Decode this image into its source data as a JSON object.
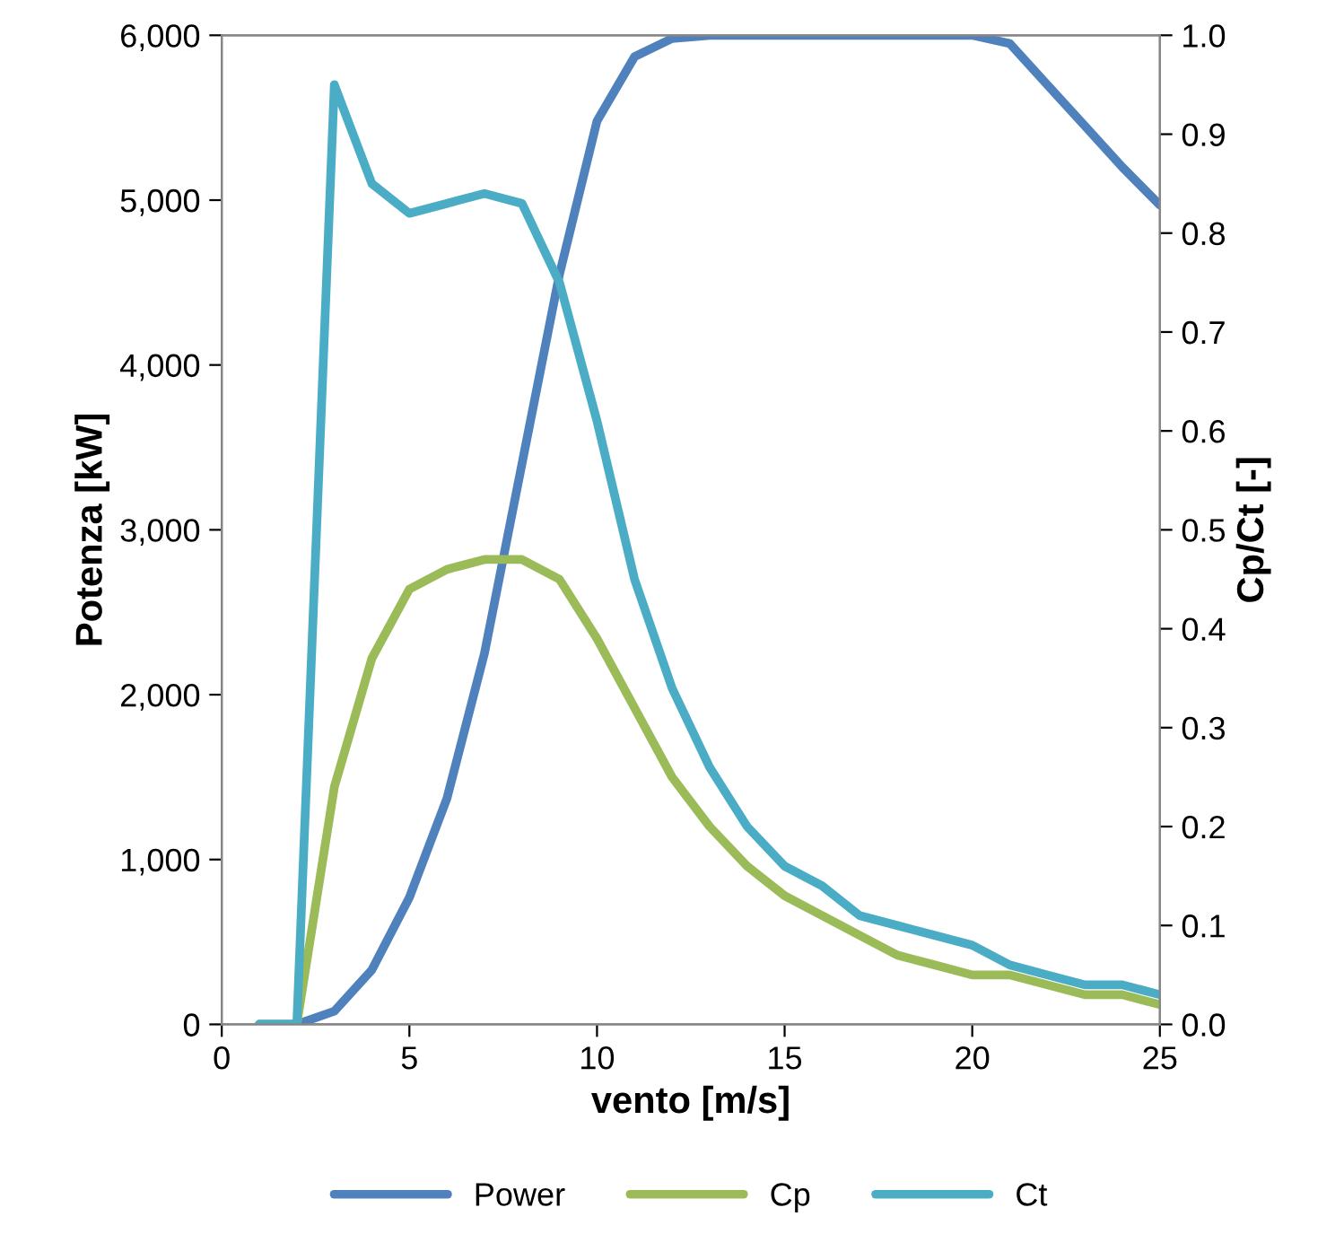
{
  "chart_data": {
    "type": "line",
    "xlabel": "vento [m/s]",
    "ylabel": "Potenza [kW]",
    "y2label": "Cp/Ct [-]",
    "x": [
      1,
      2,
      3,
      4,
      5,
      6,
      7,
      8,
      9,
      10,
      11,
      12,
      13,
      14,
      15,
      16,
      17,
      18,
      19,
      20,
      21,
      22,
      23,
      24,
      25
    ],
    "series": [
      {
        "name": "Power",
        "color": "#4f81bd",
        "values": [
          0,
          0,
          80,
          330,
          770,
          1370,
          2250,
          3400,
          4550,
          5480,
          5870,
          5980,
          6000,
          6000,
          6000,
          6000,
          6000,
          6000,
          6000,
          6000,
          5950,
          5700,
          5450,
          5200,
          4970
        ]
      },
      {
        "name": "Cp",
        "color": "#9bbb59",
        "axis": "y2",
        "values": [
          0,
          0,
          0.24,
          0.37,
          0.44,
          0.46,
          0.47,
          0.47,
          0.45,
          0.39,
          0.32,
          0.25,
          0.2,
          0.16,
          0.13,
          0.11,
          0.09,
          0.07,
          0.06,
          0.05,
          0.05,
          0.04,
          0.03,
          0.03,
          0.02
        ]
      },
      {
        "name": "Ct",
        "color": "#4bacc6",
        "axis": "y2",
        "values": [
          0,
          0,
          0.95,
          0.85,
          0.82,
          0.83,
          0.84,
          0.83,
          0.75,
          0.61,
          0.45,
          0.34,
          0.26,
          0.2,
          0.16,
          0.14,
          0.11,
          0.1,
          0.09,
          0.08,
          0.06,
          0.05,
          0.04,
          0.04,
          0.03
        ]
      }
    ],
    "xlim": [
      0,
      25
    ],
    "xticks": [
      0,
      5,
      10,
      15,
      20,
      25
    ],
    "ylim": [
      0,
      6000
    ],
    "yticks": [
      0,
      {
        "value": 1000,
        "label": "1,000"
      },
      {
        "value": 2000,
        "label": "2,000"
      },
      {
        "value": 3000,
        "label": "3,000"
      },
      {
        "value": 4000,
        "label": "4,000"
      },
      {
        "value": 5000,
        "label": "5,000"
      },
      {
        "value": 6000,
        "label": "6,000"
      }
    ],
    "y2lim": [
      0,
      1
    ],
    "y2ticks": [
      {
        "value": 0,
        "label": "0.0"
      },
      {
        "value": 0.1,
        "label": "0.1"
      },
      {
        "value": 0.2,
        "label": "0.2"
      },
      {
        "value": 0.3,
        "label": "0.3"
      },
      {
        "value": 0.4,
        "label": "0.4"
      },
      {
        "value": 0.5,
        "label": "0.5"
      },
      {
        "value": 0.6,
        "label": "0.6"
      },
      {
        "value": 0.7,
        "label": "0.7"
      },
      {
        "value": 0.8,
        "label": "0.8"
      },
      {
        "value": 0.9,
        "label": "0.9"
      },
      {
        "value": 1,
        "label": "1.0"
      }
    ],
    "grid": false,
    "legend": "bottom",
    "line_style": "solid"
  }
}
